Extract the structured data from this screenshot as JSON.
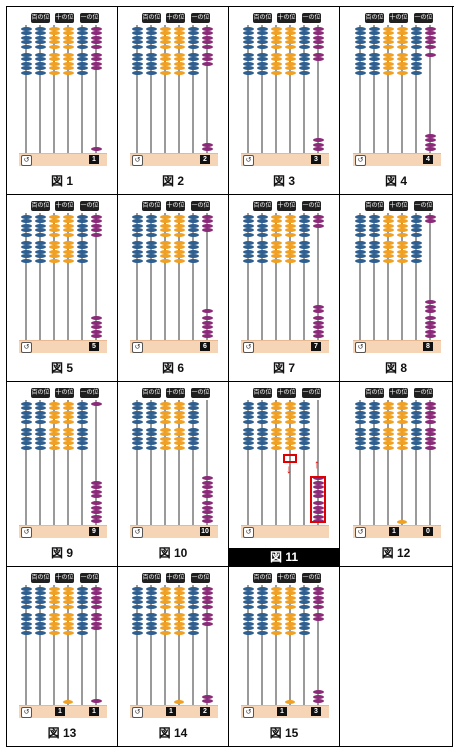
{
  "column_labels": [
    "百の位",
    "十の位",
    "一の位"
  ],
  "undo_icon": "undo-icon",
  "colors": {
    "blue": "#2f5f8f",
    "orange": "#f0a022",
    "purple": "#8a2a78",
    "highlight": "#e00000"
  },
  "figures": [
    {
      "caption": "図 1",
      "ones": 1,
      "tens": 0,
      "counters": [
        "1"
      ]
    },
    {
      "caption": "図 2",
      "ones": 2,
      "tens": 0,
      "counters": [
        "2"
      ]
    },
    {
      "caption": "図 3",
      "ones": 3,
      "tens": 0,
      "counters": [
        "3"
      ]
    },
    {
      "caption": "図 4",
      "ones": 4,
      "tens": 0,
      "counters": [
        "4"
      ]
    },
    {
      "caption": "図 5",
      "ones": 5,
      "tens": 0,
      "counters": [
        "5"
      ]
    },
    {
      "caption": "図 6",
      "ones": 6,
      "tens": 0,
      "counters": [
        "6"
      ]
    },
    {
      "caption": "図 7",
      "ones": 7,
      "tens": 0,
      "counters": [
        "7"
      ]
    },
    {
      "caption": "図 8",
      "ones": 8,
      "tens": 0,
      "counters": [
        "8"
      ]
    },
    {
      "caption": "図 9",
      "ones": 9,
      "tens": 0,
      "counters": [
        "9"
      ]
    },
    {
      "caption": "図 10",
      "ones": 10,
      "tens": 0,
      "counters": [
        "10"
      ]
    },
    {
      "caption": "図 11",
      "ones": 10,
      "tens": 0,
      "counters": [],
      "selected": true,
      "highlighted": true
    },
    {
      "caption": "図 12",
      "ones": 0,
      "tens": 1,
      "counters": [
        "1",
        "0"
      ]
    },
    {
      "caption": "図 13",
      "ones": 1,
      "tens": 1,
      "counters": [
        "1",
        "1"
      ]
    },
    {
      "caption": "図 14",
      "ones": 2,
      "tens": 1,
      "counters": [
        "1",
        "2"
      ]
    },
    {
      "caption": "図 15",
      "ones": 3,
      "tens": 1,
      "counters": [
        "1",
        "3"
      ]
    }
  ]
}
